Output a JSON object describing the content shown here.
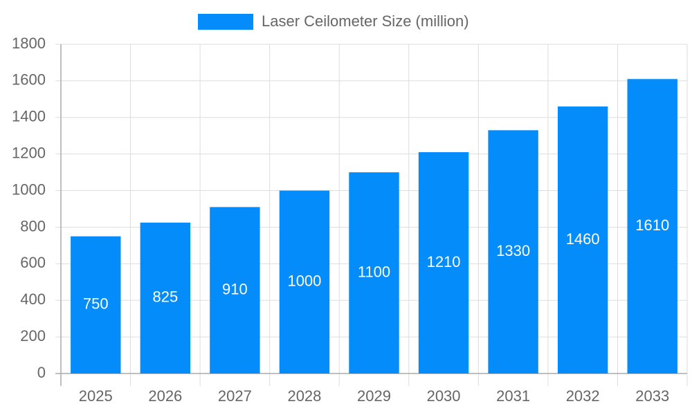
{
  "chart_data": {
    "type": "bar",
    "categories": [
      "2025",
      "2026",
      "2027",
      "2028",
      "2029",
      "2030",
      "2031",
      "2032",
      "2033"
    ],
    "series": [
      {
        "name": "Laser Ceilometer Size (million)",
        "color": "#058cfb",
        "values": [
          750,
          825,
          910,
          1000,
          1100,
          1210,
          1330,
          1460,
          1610
        ]
      }
    ],
    "ylim": [
      0,
      1800
    ],
    "yticks": [
      0,
      200,
      400,
      600,
      800,
      1000,
      1200,
      1400,
      1600,
      1800
    ],
    "grid": true,
    "legend": "top",
    "data_labels": true
  }
}
